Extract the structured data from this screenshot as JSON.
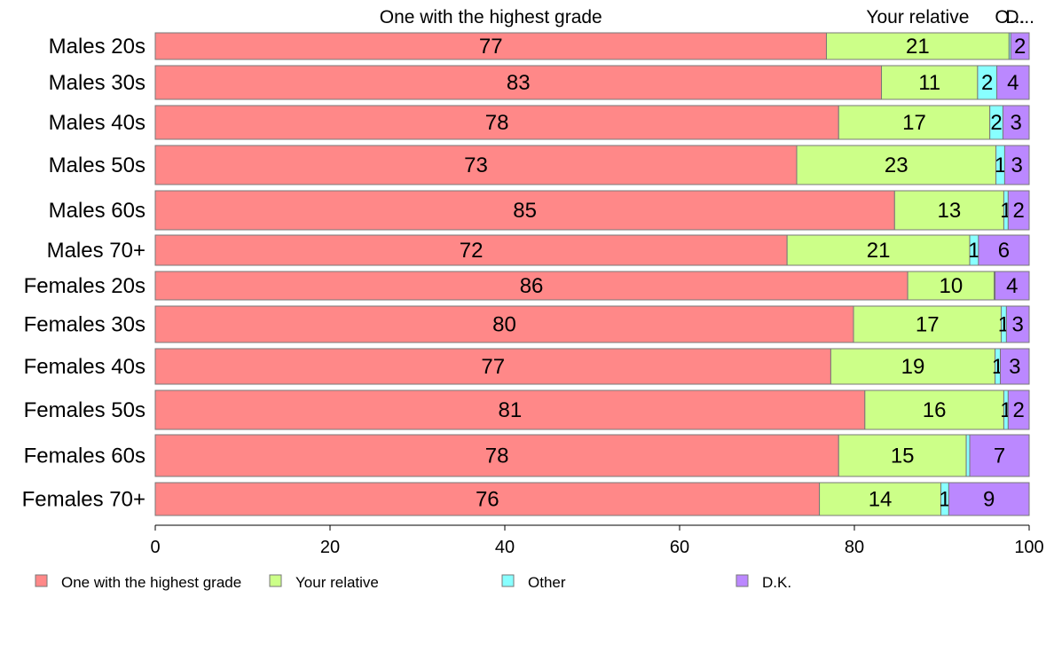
{
  "chart_data": {
    "type": "bar",
    "orientation": "horizontal",
    "stacked": true,
    "categories": [
      "Males 20s",
      "Males 30s",
      "Males 40s",
      "Males 50s",
      "Males 60s",
      "Males 70+",
      "Females 20s",
      "Females 30s",
      "Females 40s",
      "Females 50s",
      "Females 60s",
      "Females 70+"
    ],
    "series": [
      {
        "name": "One with the highest grade",
        "color": "#ff8888",
        "values": [
          76.8,
          83.1,
          78.2,
          73.4,
          84.6,
          72.3,
          86.1,
          79.9,
          77.3,
          81.2,
          78.2,
          76.0
        ]
      },
      {
        "name": "Your relative",
        "color": "#ccff88",
        "values": [
          20.9,
          11.0,
          17.3,
          22.8,
          12.5,
          20.9,
          9.9,
          16.9,
          18.8,
          15.9,
          14.6,
          13.9
        ]
      },
      {
        "name": "Other",
        "color": "#88ffff",
        "values": [
          0.2,
          2.2,
          1.5,
          1.0,
          0.5,
          1.0,
          0.1,
          0.6,
          0.6,
          0.5,
          0.4,
          0.9
        ]
      },
      {
        "name": "D.K.",
        "color": "#bb88ff",
        "values": [
          2.1,
          3.7,
          3.0,
          2.8,
          2.4,
          5.8,
          3.9,
          2.6,
          3.3,
          2.4,
          6.8,
          9.2
        ]
      }
    ],
    "value_labels": [
      [
        "77",
        "21",
        "",
        "2"
      ],
      [
        "83",
        "11",
        "2",
        "4"
      ],
      [
        "78",
        "17",
        "2",
        "3"
      ],
      [
        "73",
        "23",
        "1",
        "3"
      ],
      [
        "85",
        "13",
        "1",
        "2"
      ],
      [
        "72",
        "21",
        "1",
        "6"
      ],
      [
        "86",
        "10",
        "",
        "4"
      ],
      [
        "80",
        "17",
        "1",
        "3"
      ],
      [
        "77",
        "19",
        "1",
        "3"
      ],
      [
        "81",
        "16",
        "1",
        "2"
      ],
      [
        "78",
        "15",
        "",
        "7"
      ],
      [
        "76",
        "14",
        "1",
        "9"
      ]
    ],
    "top_labels": [
      "One with the highest grade",
      "Your relative",
      "O...",
      "D..."
    ],
    "xlim": [
      0,
      100
    ],
    "xticks": [
      "0",
      "20",
      "40",
      "60",
      "80",
      "100"
    ],
    "xlabel": "",
    "ylabel": "",
    "title": "",
    "legend_position": "bottom",
    "grid": false
  }
}
